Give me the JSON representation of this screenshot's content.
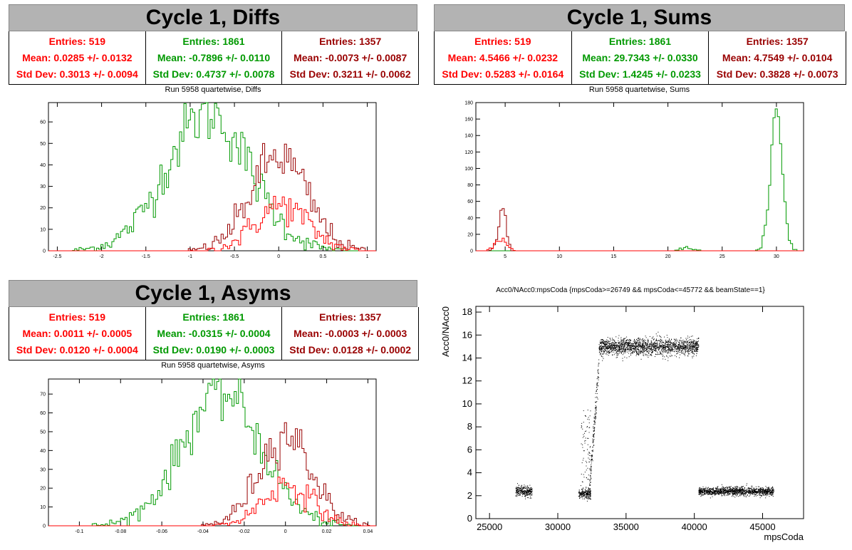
{
  "panels": [
    {
      "title": "Cycle 1, Diffs",
      "subtitle": "Run 5958 quartetwise, Diffs",
      "stats": [
        {
          "entries": "Entries: 519",
          "mean": "Mean: 0.0285 +/- 0.0132",
          "std": "Std Dev: 0.3013 +/- 0.0094"
        },
        {
          "entries": "Entries: 1861",
          "mean": "Mean: -0.7896 +/- 0.0110",
          "std": "Std Dev: 0.4737 +/- 0.0078"
        },
        {
          "entries": "Entries: 1357",
          "mean": "Mean: -0.0073 +/- 0.0087",
          "std": "Std Dev: 0.3211 +/- 0.0062"
        }
      ]
    },
    {
      "title": "Cycle 1, Sums",
      "subtitle": "Run 5958 quartetwise, Sums",
      "stats": [
        {
          "entries": "Entries: 519",
          "mean": "Mean: 4.5466 +/- 0.0232",
          "std": "Std Dev: 0.5283 +/- 0.0164"
        },
        {
          "entries": "Entries: 1861",
          "mean": "Mean: 29.7343 +/- 0.0330",
          "std": "Std Dev: 1.4245 +/- 0.0233"
        },
        {
          "entries": "Entries: 1357",
          "mean": "Mean: 4.7549 +/- 0.0104",
          "std": "Std Dev: 0.3828 +/- 0.0073"
        }
      ]
    },
    {
      "title": "Cycle 1, Asyms",
      "subtitle": "Run 5958 quartetwise, Asyms",
      "stats": [
        {
          "entries": "Entries: 519",
          "mean": "Mean: 0.0011 +/- 0.0005",
          "std": "Std Dev: 0.0120 +/- 0.0004"
        },
        {
          "entries": "Entries: 1861",
          "mean": "Mean: -0.0315 +/- 0.0004",
          "std": "Std Dev: 0.0190 +/- 0.0003"
        },
        {
          "entries": "Entries: 1357",
          "mean": "Mean: -0.0003 +/- 0.0003",
          "std": "Std Dev: 0.0128 +/- 0.0002"
        }
      ]
    }
  ],
  "colors": {
    "red": "#ff0000",
    "green": "#009900",
    "dark_red": "#990000",
    "title_bg": "#b3b3b3"
  },
  "chart_data": [
    {
      "type": "line",
      "title": "Run 5958 quartetwise, Diffs",
      "xlim": [
        -2.6,
        1.1
      ],
      "ylim": [
        0,
        69
      ],
      "xticks": [
        -2.5,
        -2,
        -1.5,
        -1,
        -0.5,
        0,
        0.5,
        1
      ],
      "xtick_labels": [
        "-2.5",
        "-2",
        "-1.5",
        "-1",
        "-0.5",
        "0",
        "0.5",
        "1"
      ],
      "yticks": [
        0,
        10,
        20,
        30,
        40,
        50,
        60
      ],
      "ytick_labels": [
        "0",
        "10",
        "20",
        "30",
        "40",
        "50",
        "60"
      ],
      "series": [
        {
          "color": "#009900",
          "peaks": [
            [
              -0.8,
              64,
              0.47
            ]
          ],
          "entries": 1861
        },
        {
          "color": "#990000",
          "peaks": [
            [
              0.0,
              44,
              0.32
            ]
          ],
          "entries": 1357
        },
        {
          "color": "#ff0000",
          "peaks": [
            [
              0.03,
              21,
              0.3
            ]
          ],
          "entries": 519
        }
      ]
    },
    {
      "type": "line",
      "title": "Run 5958 quartetwise, Sums",
      "xlim": [
        2.3,
        32.5
      ],
      "ylim": [
        0,
        180
      ],
      "xticks": [
        5,
        10,
        15,
        20,
        25,
        30
      ],
      "xtick_labels": [
        "5",
        "10",
        "15",
        "20",
        "25",
        "30"
      ],
      "yticks": [
        0,
        20,
        40,
        60,
        80,
        100,
        120,
        140,
        160,
        180
      ],
      "ytick_labels": [
        "0",
        "20",
        "40",
        "60",
        "80",
        "100",
        "120",
        "140",
        "160",
        "180"
      ],
      "series": [
        {
          "color": "#009900",
          "peaks": [
            [
              30.0,
              170,
              0.55
            ],
            [
              21.8,
              5,
              0.5
            ]
          ],
          "entries": 1861
        },
        {
          "color": "#990000",
          "peaks": [
            [
              4.75,
              50,
              0.38
            ]
          ],
          "entries": 1357
        },
        {
          "color": "#ff0000",
          "peaks": [
            [
              4.55,
              16,
              0.5
            ]
          ],
          "entries": 519
        }
      ]
    },
    {
      "type": "line",
      "title": "Run 5958 quartetwise, Asyms",
      "xlim": [
        -0.115,
        0.044
      ],
      "ylim": [
        0,
        78
      ],
      "xticks": [
        -0.1,
        -0.08,
        -0.06,
        -0.04,
        -0.02,
        0,
        0.02,
        0.04
      ],
      "xtick_labels": [
        "-0.1",
        "-0.08",
        "-0.06",
        "-0.04",
        "-0.02",
        "0",
        "0.02",
        "0.04"
      ],
      "yticks": [
        0,
        10,
        20,
        30,
        40,
        50,
        60,
        70
      ],
      "ytick_labels": [
        "0",
        "10",
        "20",
        "30",
        "40",
        "50",
        "60",
        "70"
      ],
      "series": [
        {
          "color": "#009900",
          "peaks": [
            [
              -0.031,
              71,
              0.019
            ]
          ],
          "entries": 1861
        },
        {
          "color": "#990000",
          "peaks": [
            [
              0.0,
              49,
              0.0128
            ]
          ],
          "entries": 1357
        },
        {
          "color": "#ff0000",
          "peaks": [
            [
              0.001,
              22,
              0.012
            ]
          ],
          "entries": 519
        }
      ]
    },
    {
      "type": "scatter",
      "title": "Acc0/NAcc0:mpsCoda {mpsCoda>=26749 && mpsCoda<=45772 && beamState==1}",
      "xlabel": "mpsCoda",
      "ylabel": "Acc0/NAcc0",
      "xlim": [
        24000,
        48000
      ],
      "ylim": [
        0,
        18.5
      ],
      "xticks": [
        25000,
        30000,
        35000,
        40000,
        45000
      ],
      "xtick_labels": [
        "25000",
        "30000",
        "35000",
        "40000",
        "45000"
      ],
      "yticks": [
        0,
        2,
        4,
        6,
        8,
        10,
        12,
        14,
        16,
        18
      ],
      "ytick_labels": [
        "0",
        "2",
        "4",
        "6",
        "8",
        "10",
        "12",
        "14",
        "16",
        "18"
      ],
      "clusters": [
        {
          "x": [
            26900,
            28100
          ],
          "y_center": 2.4,
          "y_spread": 0.5
        },
        {
          "x": [
            31500,
            32400
          ],
          "y_center": 2.2,
          "y_spread": 0.5
        },
        {
          "x": [
            32300,
            33000
          ],
          "y_center": 10.0,
          "y_spread": 1.8
        },
        {
          "x": [
            33000,
            40300
          ],
          "y_center": 15.0,
          "y_spread": 0.8
        },
        {
          "x": [
            40300,
            45800
          ],
          "y_center": 2.4,
          "y_spread": 0.4
        }
      ]
    }
  ]
}
